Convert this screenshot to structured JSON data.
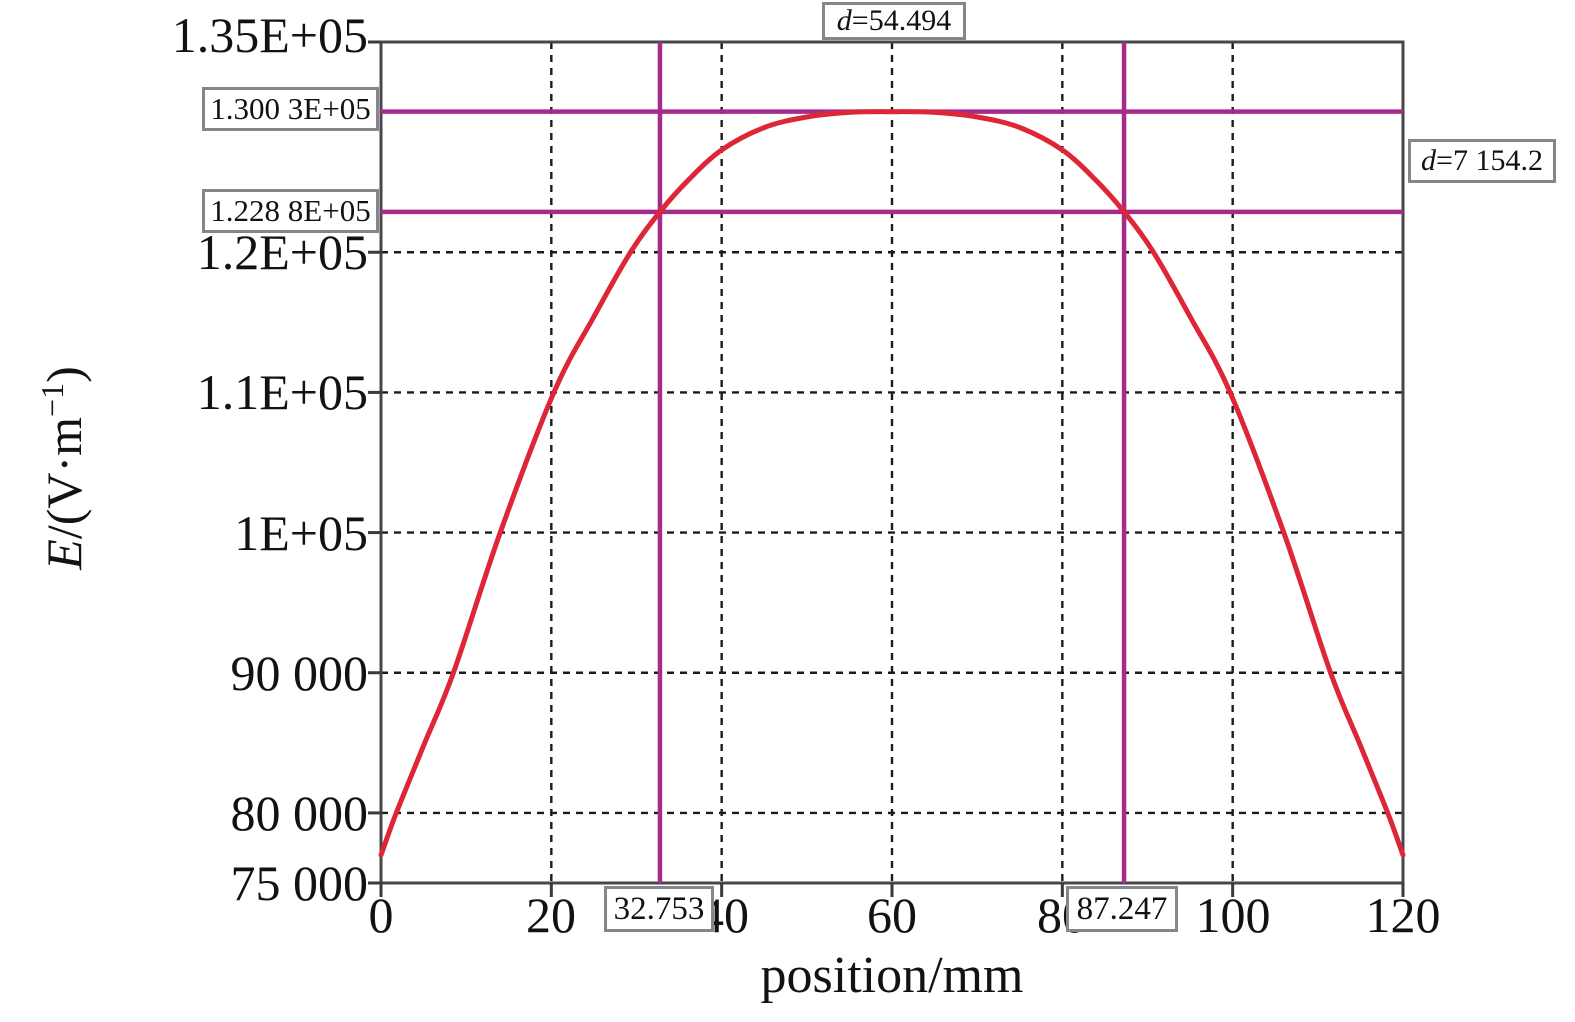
{
  "chart_data": {
    "type": "line",
    "title": "",
    "xlabel": "position/mm",
    "ylabel": {
      "var": "E",
      "mid": "/(V·m",
      "sup": "−1",
      "close": ")"
    },
    "xlim": [
      0,
      120
    ],
    "ylim": [
      75000,
      135000
    ],
    "grid": "dashed",
    "legend": false,
    "xticks": [
      {
        "value": 0,
        "label": "0",
        "grid": false
      },
      {
        "value": 20,
        "label": "20",
        "grid": true
      },
      {
        "value": 40,
        "label": "40",
        "grid": true
      },
      {
        "value": 60,
        "label": "60",
        "grid": true
      },
      {
        "value": 80,
        "label": "80",
        "grid": true
      },
      {
        "value": 100,
        "label": "100",
        "grid": true
      },
      {
        "value": 120,
        "label": "120",
        "grid": false
      }
    ],
    "yticks": [
      {
        "value": 135000,
        "label": "1.35E+05",
        "grid": false
      },
      {
        "value": 120000,
        "label": "1.2E+05",
        "grid": true
      },
      {
        "value": 110000,
        "label": "1.1E+05",
        "grid": true
      },
      {
        "value": 100000,
        "label": "1E+05",
        "grid": true
      },
      {
        "value": 90000,
        "label": "90 000",
        "grid": true
      },
      {
        "value": 80000,
        "label": "80 000",
        "grid": true
      },
      {
        "value": 75000,
        "label": "75 000",
        "grid": false
      }
    ],
    "series": [
      {
        "name": "electric-field-vs-position",
        "color": "#dd2737",
        "points": [
          [
            0,
            77000
          ],
          [
            1.8,
            80000
          ],
          [
            5,
            84800
          ],
          [
            8.5,
            90000
          ],
          [
            14,
            100000
          ],
          [
            20.3,
            110000
          ],
          [
            25,
            115400
          ],
          [
            29.3,
            120000
          ],
          [
            32.753,
            122880
          ],
          [
            36,
            125100
          ],
          [
            40,
            127300
          ],
          [
            45,
            128900
          ],
          [
            50,
            129650
          ],
          [
            55,
            129980
          ],
          [
            60,
            130030
          ],
          [
            65,
            129980
          ],
          [
            70,
            129650
          ],
          [
            75,
            128900
          ],
          [
            80,
            127300
          ],
          [
            84,
            125100
          ],
          [
            87.247,
            122880
          ],
          [
            90.7,
            120000
          ],
          [
            95,
            115400
          ],
          [
            99.7,
            110000
          ],
          [
            106,
            100000
          ],
          [
            111.5,
            90000
          ],
          [
            115,
            84800
          ],
          [
            118.2,
            80000
          ],
          [
            120,
            77000
          ]
        ]
      }
    ],
    "cursors": {
      "color": "#a62c8c",
      "vertical": [
        {
          "value": 32.753,
          "label": "32.753"
        },
        {
          "value": 87.247,
          "label": "87.247"
        }
      ],
      "horizontal": [
        {
          "value": 130030,
          "label": "1.300 3E+05"
        },
        {
          "value": 122880,
          "label": "1.228 8E+05"
        }
      ],
      "width_label": {
        "prefix": "d",
        "text": "=54.494"
      },
      "height_label": {
        "prefix": "d",
        "text": "=7 154.2"
      }
    },
    "frame_color": "#47474b",
    "grid_color": "#1b1b1b"
  }
}
